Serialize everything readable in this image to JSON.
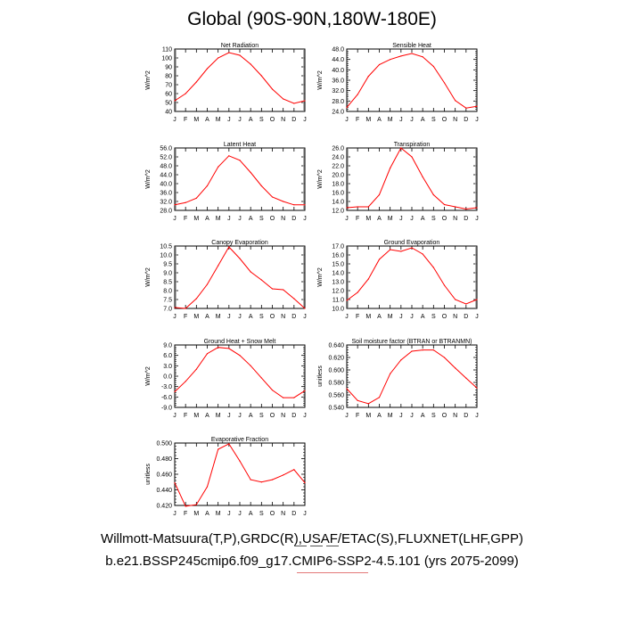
{
  "title": "Global (90S-90N,180W-180E)",
  "captions": {
    "observations": "Willmott-Matsuura(T,P),GRDC(R),USAF/ETAC(S),FLUXNET(LHF,GPP)",
    "case": "b.e21.BSSP245cmip6.f09_g17.CMIP6-SSP2-4.5.101 (yrs 2075-2099)"
  },
  "colors": {
    "line": "#ff0000",
    "axis": "#000000"
  },
  "months": [
    "J",
    "F",
    "M",
    "A",
    "M",
    "J",
    "J",
    "A",
    "S",
    "O",
    "N",
    "D",
    "J"
  ],
  "chart_data": [
    {
      "type": "line",
      "title": "Net Radiation",
      "ylabel": "W/m^2",
      "ylim": [
        40,
        110
      ],
      "yticks": [
        "40",
        "50",
        "60",
        "70",
        "80",
        "90",
        "100",
        "110"
      ],
      "ytick_values": [
        40,
        50,
        60,
        70,
        80,
        90,
        100,
        110
      ],
      "values": [
        52,
        60,
        73,
        88,
        100,
        106,
        103,
        93,
        80,
        65,
        54,
        49,
        52
      ]
    },
    {
      "type": "line",
      "title": "Sensible Heat",
      "ylabel": "W/m^2",
      "ylim": [
        24,
        48
      ],
      "yticks": [
        "24.0",
        "28.0",
        "32.0",
        "36.0",
        "40.0",
        "44.0",
        "48.0"
      ],
      "ytick_values": [
        24,
        28,
        32,
        36,
        40,
        44,
        48
      ],
      "values": [
        25.5,
        30.5,
        37.5,
        42.0,
        44.0,
        45.3,
        46.3,
        45.0,
        41.3,
        35.0,
        28.2,
        25.3,
        26.0
      ]
    },
    {
      "type": "line",
      "title": "Latent Heat",
      "ylabel": "W/m^2",
      "ylim": [
        28,
        56
      ],
      "yticks": [
        "28.0",
        "32.0",
        "36.0",
        "40.0",
        "44.0",
        "48.0",
        "52.0",
        "56.0"
      ],
      "ytick_values": [
        28,
        32,
        36,
        40,
        44,
        48,
        52,
        56
      ],
      "values": [
        30.5,
        31.5,
        33.5,
        39.0,
        47.5,
        52.5,
        50.5,
        45.0,
        39.0,
        34.0,
        32.0,
        30.5,
        30.5
      ]
    },
    {
      "type": "line",
      "title": "Transpiration",
      "ylabel": "W/m^2",
      "ylim": [
        12,
        26
      ],
      "yticks": [
        "12.0",
        "14.0",
        "16.0",
        "18.0",
        "20.0",
        "22.0",
        "24.0",
        "26.0"
      ],
      "ytick_values": [
        12,
        14,
        16,
        18,
        20,
        22,
        24,
        26
      ],
      "values": [
        12.6,
        12.8,
        12.8,
        15.5,
        21.5,
        26.0,
        24.0,
        19.5,
        15.5,
        13.3,
        12.8,
        12.3,
        12.6
      ]
    },
    {
      "type": "line",
      "title": "Canopy Evaporation",
      "ylabel": "W/m^2",
      "ylim": [
        7.0,
        10.5
      ],
      "yticks": [
        "7.0",
        "7.5",
        "8.0",
        "8.5",
        "9.0",
        "9.5",
        "10.0",
        "10.5"
      ],
      "ytick_values": [
        7.0,
        7.5,
        8.0,
        8.5,
        9.0,
        9.5,
        10.0,
        10.5
      ],
      "values": [
        7.05,
        7.0,
        7.55,
        8.35,
        9.4,
        10.45,
        9.8,
        9.05,
        8.6,
        8.1,
        8.05,
        7.55,
        7.0
      ]
    },
    {
      "type": "line",
      "title": "Ground Evaporation",
      "ylabel": "W/m^2",
      "ylim": [
        10,
        17
      ],
      "yticks": [
        "10.0",
        "11.0",
        "12.0",
        "13.0",
        "14.0",
        "15.0",
        "16.0",
        "17.0"
      ],
      "ytick_values": [
        10,
        11,
        12,
        13,
        14,
        15,
        16,
        17
      ],
      "values": [
        10.9,
        11.8,
        13.3,
        15.5,
        16.6,
        16.4,
        16.8,
        16.1,
        14.6,
        12.6,
        11.0,
        10.5,
        11.0
      ]
    },
    {
      "type": "line",
      "title": "Ground Heat + Snow Melt",
      "ylabel": "W/m^2",
      "ylim": [
        -9,
        9
      ],
      "yticks": [
        "-9.0",
        "-6.0",
        "-3.0",
        "0.0",
        "3.0",
        "6.0",
        "9.0"
      ],
      "ytick_values": [
        -9,
        -6,
        -3,
        0,
        3,
        6,
        9
      ],
      "values": [
        -4.5,
        -1.5,
        2.0,
        6.5,
        8.3,
        8.0,
        6.0,
        3.0,
        -0.5,
        -4.0,
        -6.2,
        -6.2,
        -4.2
      ]
    },
    {
      "type": "line",
      "title": "Soil moisture factor (BTRAN or BTRANMN)",
      "ylabel": "unitless",
      "ylim": [
        0.54,
        0.64
      ],
      "yticks": [
        "0.540",
        "0.560",
        "0.580",
        "0.600",
        "0.620",
        "0.640"
      ],
      "ytick_values": [
        0.54,
        0.56,
        0.58,
        0.6,
        0.62,
        0.64
      ],
      "values": [
        0.57,
        0.551,
        0.546,
        0.556,
        0.594,
        0.616,
        0.63,
        0.632,
        0.632,
        0.62,
        0.603,
        0.587,
        0.571
      ]
    },
    {
      "type": "line",
      "title": "Evaporative Fraction",
      "ylabel": "unitless",
      "ylim": [
        0.42,
        0.5
      ],
      "yticks": [
        "0.420",
        "0.440",
        "0.460",
        "0.480",
        "0.500"
      ],
      "ytick_values": [
        0.42,
        0.44,
        0.46,
        0.48,
        0.5
      ],
      "values": [
        0.449,
        0.419,
        0.421,
        0.444,
        0.492,
        0.499,
        0.477,
        0.453,
        0.45,
        0.453,
        0.459,
        0.466,
        0.449
      ]
    }
  ]
}
